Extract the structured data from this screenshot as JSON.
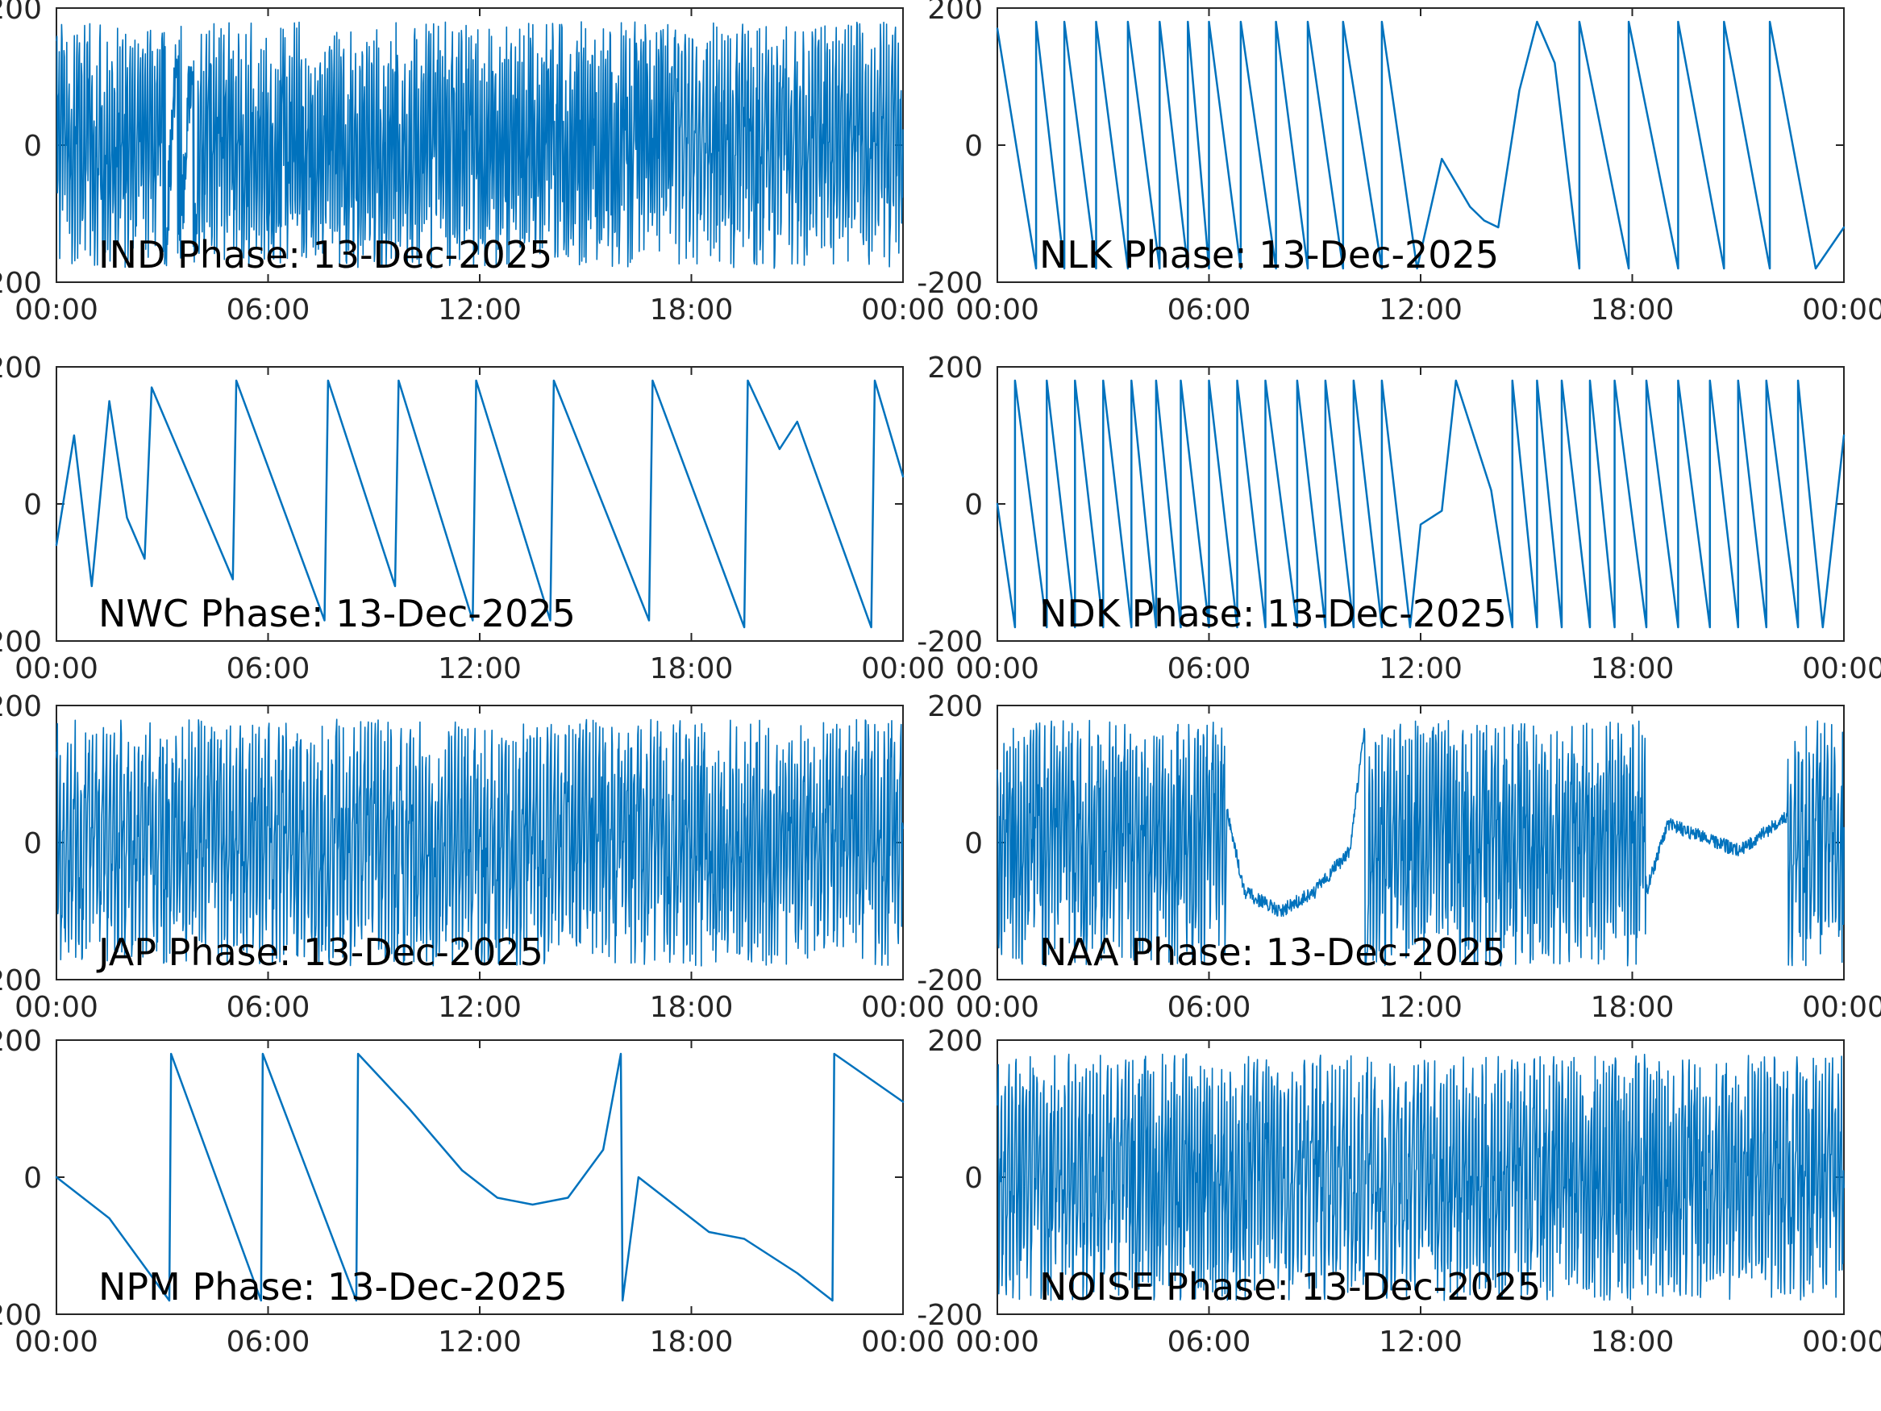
{
  "figure": {
    "line_color": "#0072BD",
    "axis_color": "#262626"
  },
  "chart_data": [
    {
      "type": "line",
      "title": "IND Phase: 13-Dec-2025",
      "xticks": [
        "00:00",
        "06:00",
        "12:00",
        "18:00",
        "00:00"
      ],
      "yticks": [
        "-200",
        "0",
        "200"
      ],
      "xlim_hours": [
        0,
        24
      ],
      "ylim": [
        -200,
        200
      ],
      "wrap_range": [
        -180,
        180
      ],
      "pattern": "rapid wraps",
      "x_hours": [
        0,
        2.5,
        3.0,
        4.0,
        6,
        9,
        12,
        15,
        17.5,
        18.5,
        21,
        24
      ],
      "y": [
        60,
        -40,
        120,
        -100,
        0,
        20,
        -20,
        40,
        0,
        -80,
        30,
        -60
      ],
      "wraps_per_hour": [
        14,
        14,
        3,
        14,
        15,
        15,
        16,
        16,
        10,
        12,
        12
      ]
    },
    {
      "type": "line",
      "title": "NLK Phase: 13-Dec-2025",
      "xticks": [
        "00:00",
        "06:00",
        "12:00",
        "18:00",
        "00:00"
      ],
      "yticks": [
        "-200",
        "0",
        "200"
      ],
      "xlim_hours": [
        0,
        24
      ],
      "ylim": [
        -200,
        200
      ],
      "wrap_range": [
        -180,
        180
      ],
      "pattern": "sawtooth",
      "x_hours": [
        0,
        1.1,
        1.9,
        2.8,
        3.7,
        4.6,
        5.4,
        6.0,
        6.9,
        7.9,
        8.8,
        9.8,
        10.9,
        11.9,
        12.6,
        13.4,
        13.8,
        14.2,
        14.8,
        15.3,
        15.8,
        16.5,
        17.9,
        19.3,
        20.6,
        21.9,
        23.2,
        24
      ],
      "y": [
        170,
        -180,
        -180,
        -180,
        -180,
        -180,
        -180,
        -180,
        -180,
        -180,
        -180,
        -180,
        -180,
        -180,
        -20,
        -90,
        -110,
        -120,
        80,
        180,
        120,
        -180,
        -180,
        -180,
        -180,
        -180,
        -180,
        -120
      ],
      "wraps_per_hour": [
        0
      ]
    },
    {
      "type": "line",
      "title": "NWC Phase: 13-Dec-2025",
      "xticks": [
        "00:00",
        "06:00",
        "12:00",
        "18:00",
        "00:00"
      ],
      "yticks": [
        "-200",
        "0",
        "200"
      ],
      "xlim_hours": [
        0,
        24
      ],
      "ylim": [
        -200,
        200
      ],
      "wrap_range": [
        -180,
        180
      ],
      "pattern": "sawtooth",
      "x_hours": [
        0,
        0.5,
        1.0,
        1.5,
        2.0,
        2.5,
        2.7,
        5.0,
        5.1,
        7.6,
        7.7,
        9.6,
        9.7,
        11.8,
        11.9,
        14.0,
        14.1,
        16.8,
        16.9,
        19.5,
        19.6,
        20.5,
        21.0,
        23.1,
        23.2,
        24
      ],
      "y": [
        -60,
        100,
        -120,
        150,
        -20,
        -80,
        170,
        -110,
        180,
        -170,
        180,
        -120,
        180,
        -170,
        180,
        -170,
        180,
        -170,
        180,
        -180,
        180,
        80,
        120,
        -180,
        180,
        40
      ],
      "wraps_per_hour": [
        0
      ]
    },
    {
      "type": "line",
      "title": "NDK Phase: 13-Dec-2025",
      "xticks": [
        "00:00",
        "06:00",
        "12:00",
        "18:00",
        "00:00"
      ],
      "yticks": [
        "-200",
        "0",
        "200"
      ],
      "xlim_hours": [
        0,
        24
      ],
      "ylim": [
        -200,
        200
      ],
      "wrap_range": [
        -180,
        180
      ],
      "pattern": "sawtooth",
      "x_hours": [
        0,
        0.5,
        1.4,
        2.2,
        3.0,
        3.8,
        4.5,
        5.2,
        6.0,
        6.8,
        7.6,
        8.5,
        9.3,
        10.1,
        10.9,
        11.7,
        12.0,
        12.6,
        13.0,
        14.0,
        14.6,
        15.3,
        16.0,
        16.8,
        17.5,
        18.4,
        19.3,
        20.2,
        21.0,
        21.8,
        22.7,
        23.4,
        24
      ],
      "y": [
        0,
        -180,
        -180,
        -180,
        -180,
        -180,
        -180,
        -180,
        -180,
        -180,
        -180,
        -180,
        -180,
        -180,
        -180,
        -180,
        -30,
        -10,
        180,
        20,
        -180,
        -180,
        -180,
        -180,
        -180,
        -180,
        -180,
        -180,
        -180,
        -180,
        -180,
        -180,
        100
      ],
      "wraps_per_hour": [
        0
      ]
    },
    {
      "type": "line",
      "title": "JAP Phase: 13-Dec-2025",
      "xticks": [
        "00:00",
        "06:00",
        "12:00",
        "18:00",
        "00:00"
      ],
      "yticks": [
        "-200",
        "0",
        "200"
      ],
      "xlim_hours": [
        0,
        24
      ],
      "ylim": [
        -200,
        200
      ],
      "wrap_range": [
        -180,
        180
      ],
      "pattern": "rapid wraps",
      "x_hours": [
        0,
        3,
        6,
        9,
        12,
        15,
        18,
        21,
        24
      ],
      "y": [
        40,
        -20,
        60,
        0,
        -40,
        30,
        -30,
        20,
        0
      ],
      "wraps_per_hour": [
        10,
        11,
        10,
        11,
        10,
        11,
        12,
        11
      ]
    },
    {
      "type": "line",
      "title": "NAA Phase: 13-Dec-2025",
      "xticks": [
        "00:00",
        "06:00",
        "12:00",
        "18:00",
        "00:00"
      ],
      "yticks": [
        "-200",
        "0",
        "200"
      ],
      "xlim_hours": [
        0,
        24
      ],
      "ylim": [
        -200,
        200
      ],
      "wrap_range": [
        -180,
        180
      ],
      "pattern": "mixed",
      "x_hours": [
        0,
        6.5,
        7.0,
        8.0,
        9.0,
        10.0,
        10.5,
        13.0,
        16.0,
        18.4,
        19.0,
        21.0,
        22.4,
        24
      ],
      "y": [
        0,
        20,
        -100,
        -130,
        -100,
        -40,
        180,
        0,
        -20,
        0,
        100,
        60,
        110,
        0
      ],
      "wraps_per_hour": [
        12,
        0,
        0,
        0,
        0,
        0,
        12,
        12,
        12,
        0,
        0,
        0,
        10
      ]
    },
    {
      "type": "line",
      "title": "NPM Phase: 13-Dec-2025",
      "xticks": [
        "00:00",
        "06:00",
        "12:00",
        "18:00",
        "00:00"
      ],
      "yticks": [
        "-200",
        "0",
        "200"
      ],
      "xlim_hours": [
        0,
        24
      ],
      "ylim": [
        -200,
        200
      ],
      "wrap_range": [
        -180,
        180
      ],
      "pattern": "sawtooth",
      "x_hours": [
        0,
        1.5,
        3.2,
        3.25,
        5.8,
        5.85,
        8.5,
        8.55,
        10.0,
        11.5,
        12.5,
        13.5,
        14.5,
        15.5,
        16.0,
        16.05,
        16.5,
        18.5,
        19.5,
        21.0,
        22.0,
        22.05,
        24
      ],
      "y": [
        0,
        -60,
        -180,
        180,
        -180,
        180,
        -180,
        180,
        100,
        10,
        -30,
        -40,
        -30,
        40,
        180,
        -180,
        0,
        -80,
        -90,
        -140,
        -180,
        180,
        110
      ],
      "wraps_per_hour": [
        0
      ]
    },
    {
      "type": "line",
      "title": "NOISE Phase: 13-Dec-2025",
      "xticks": [
        "00:00",
        "06:00",
        "12:00",
        "18:00",
        "00:00"
      ],
      "yticks": [
        "-200",
        "0",
        "200"
      ],
      "xlim_hours": [
        0,
        24
      ],
      "ylim": [
        -200,
        200
      ],
      "wrap_range": [
        -180,
        180
      ],
      "pattern": "noise",
      "x_hours": [
        0,
        4,
        8,
        12,
        16,
        20,
        24
      ],
      "y": [
        0,
        30,
        -20,
        10,
        0,
        40,
        -30
      ],
      "wraps_per_hour": [
        10,
        12,
        9,
        11,
        12,
        11
      ]
    }
  ]
}
